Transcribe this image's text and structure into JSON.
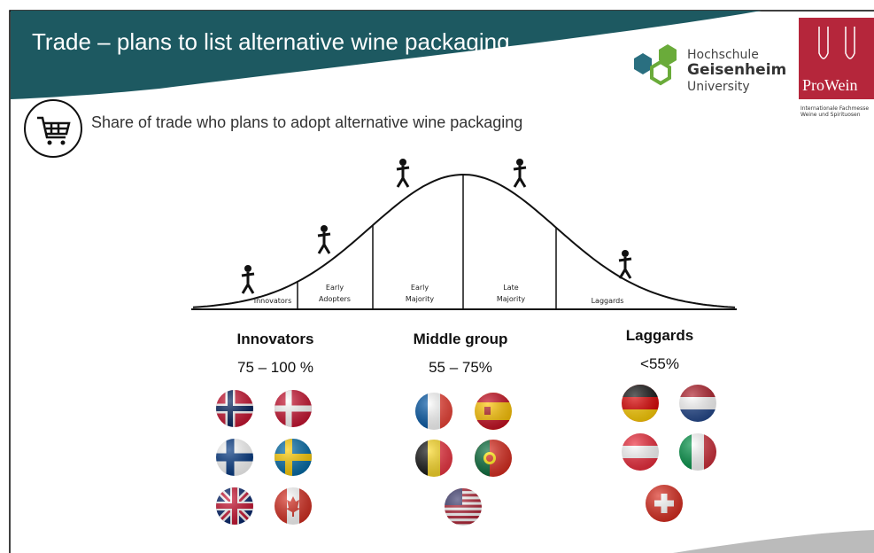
{
  "header": {
    "title": "Trade – plans to list alternative wine packaging",
    "logo_hochschule": [
      "Hochschule",
      "Geisenheim",
      "University"
    ],
    "logo_prowein": "ProWein",
    "logo_prowein_tagline": [
      "Internationale Fachmesse",
      "Weine und Spirituosen"
    ]
  },
  "subtitle": "Share of trade who  plans to adopt alternative wine packaging",
  "curve_segments": [
    [
      "Innovators"
    ],
    [
      "Early",
      "Adopters"
    ],
    [
      "Early",
      "Majority"
    ],
    [
      "Late",
      "Majority"
    ],
    [
      "Laggards"
    ]
  ],
  "groups": [
    {
      "name": "Innovators",
      "range": "75 – 100 %"
    },
    {
      "name": "Middle group",
      "range": "55 – 75%"
    },
    {
      "name": "Laggards",
      "range": "<55%"
    }
  ]
}
